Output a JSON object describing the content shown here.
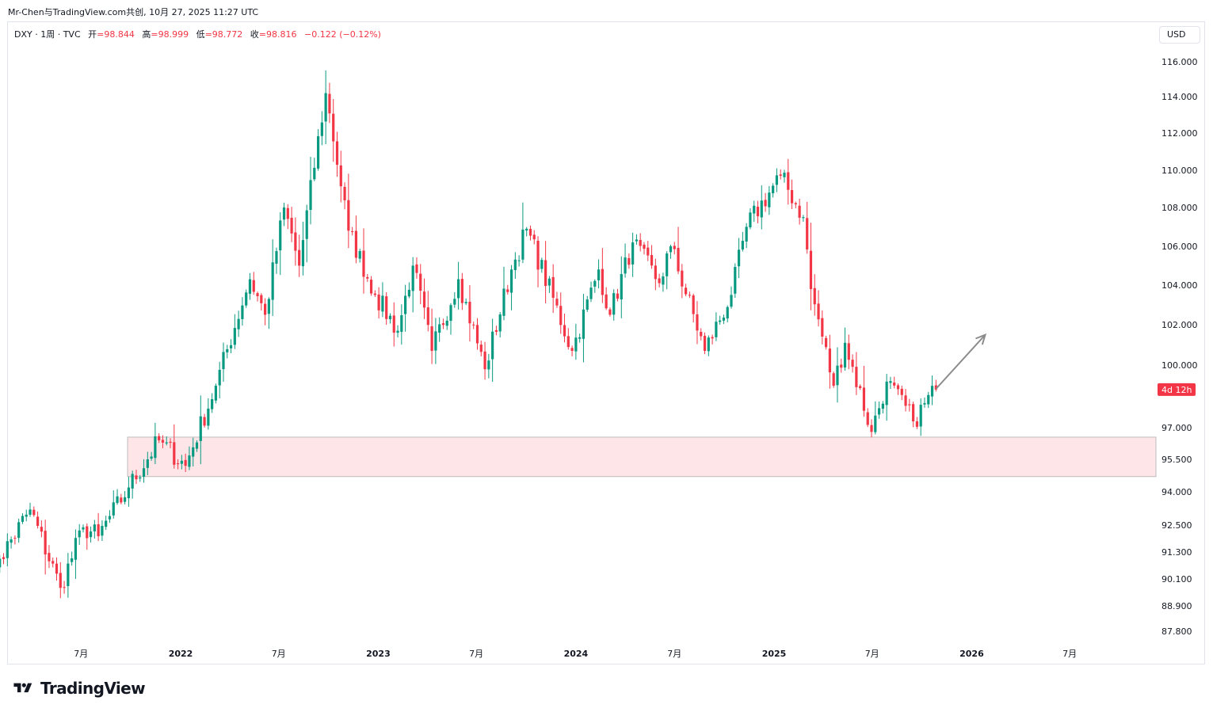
{
  "header": {
    "share_line": "Mr-Chen与TradingView.com共创, 10月 27, 2025 11:27 UTC"
  },
  "legend": {
    "symbol": "DXY · 1周 · TVC",
    "open_label": "开",
    "open_value": "=98.844",
    "high_label": "高",
    "high_value": "=98.999",
    "low_label": "低",
    "low_value": "=98.772",
    "close_label": "收",
    "close_value": "=98.816",
    "change": "−0.122 (−0.12%)"
  },
  "currency_button": "USD",
  "countdown_label": "4d 12h",
  "branding": {
    "name": "TradingView"
  },
  "colors": {
    "up": "#089981",
    "down": "#f23645",
    "zone_fill": "#fde5e8",
    "zone_border": "#b0b0b0",
    "arrow": "#8c8c8c",
    "axis_text": "#131722"
  },
  "chart_data": {
    "type": "candlestick",
    "symbol": "DXY",
    "interval": "1 week",
    "y_ticks": [
      "116.000",
      "114.000",
      "112.000",
      "110.000",
      "108.000",
      "106.000",
      "104.000",
      "102.000",
      "100.000",
      "97.000",
      "95.500",
      "94.000",
      "92.500",
      "91.300",
      "90.100",
      "88.900",
      "87.800"
    ],
    "x_ticks": [
      "7月",
      "2022",
      "7月",
      "2023",
      "7月",
      "2024",
      "7月",
      "2025",
      "7月",
      "2026",
      "7月"
    ],
    "ylim": [
      87.0,
      117.0
    ],
    "support_zone": [
      94.7,
      96.55
    ],
    "projection_arrow": {
      "from": [
        "2025-10-27",
        98.85
      ],
      "to": [
        "2026-01-26",
        101.5
      ]
    },
    "last_price": 98.816,
    "keypoints": [
      [
        "2021-01-04",
        90.2
      ],
      [
        "2021-02-01",
        91.0
      ],
      [
        "2021-03-29",
        93.2
      ],
      [
        "2021-05-24",
        89.7
      ],
      [
        "2021-07-05",
        92.4
      ],
      [
        "2021-08-02",
        92.0
      ],
      [
        "2021-09-27",
        94.2
      ],
      [
        "2021-11-22",
        96.4
      ],
      [
        "2022-01-10",
        95.2
      ],
      [
        "2022-03-07",
        99.0
      ],
      [
        "2022-05-09",
        104.3
      ],
      [
        "2022-06-06",
        102.5
      ],
      [
        "2022-07-11",
        108.0
      ],
      [
        "2022-08-08",
        105.0
      ],
      [
        "2022-09-26",
        114.2
      ],
      [
        "2022-11-07",
        106.8
      ],
      [
        "2022-12-26",
        103.5
      ],
      [
        "2023-02-06",
        101.7
      ],
      [
        "2023-03-06",
        105.0
      ],
      [
        "2023-04-10",
        100.7
      ],
      [
        "2023-05-29",
        104.3
      ],
      [
        "2023-07-17",
        99.8
      ],
      [
        "2023-09-04",
        104.8
      ],
      [
        "2023-10-02",
        106.9
      ],
      [
        "2023-12-25",
        100.7
      ],
      [
        "2024-02-12",
        104.8
      ],
      [
        "2024-03-04",
        102.5
      ],
      [
        "2024-04-15",
        106.2
      ],
      [
        "2024-06-03",
        104.1
      ],
      [
        "2024-06-24",
        106.0
      ],
      [
        "2024-08-26",
        100.7
      ],
      [
        "2024-10-14",
        103.5
      ],
      [
        "2024-11-11",
        107.0
      ],
      [
        "2025-01-13",
        109.7
      ],
      [
        "2025-02-24",
        107.5
      ],
      [
        "2025-03-10",
        103.8
      ],
      [
        "2025-04-21",
        99.0
      ],
      [
        "2025-05-12",
        101.1
      ],
      [
        "2025-06-30",
        96.8
      ],
      [
        "2025-07-28",
        99.2
      ],
      [
        "2025-09-15",
        97.3
      ],
      [
        "2025-10-27",
        98.816
      ]
    ]
  }
}
